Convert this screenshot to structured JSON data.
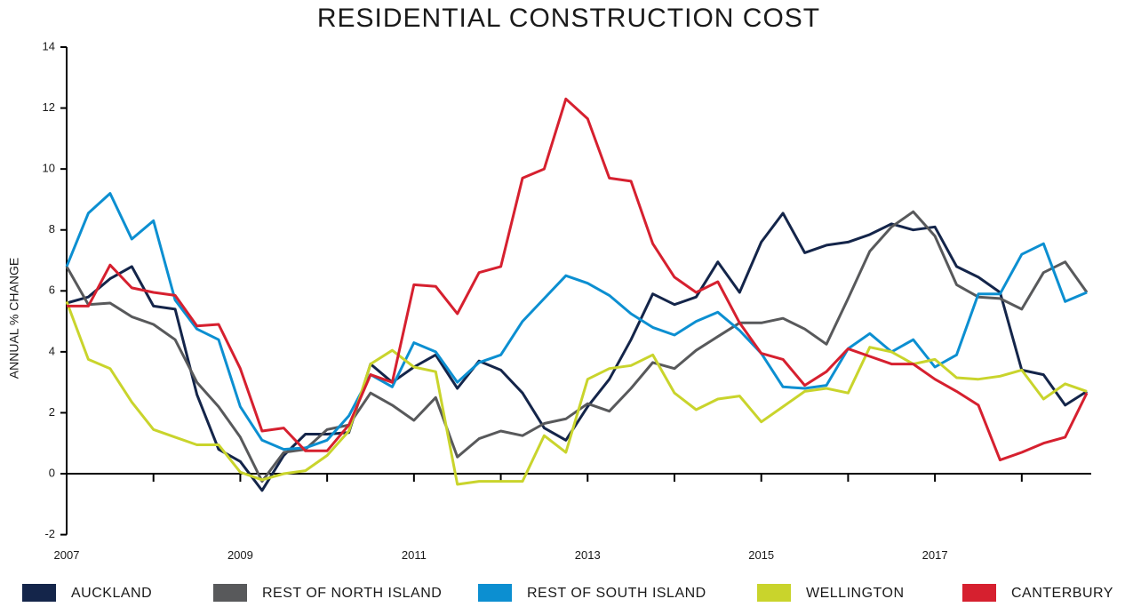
{
  "chart_data": {
    "type": "line",
    "title": "RESIDENTIAL CONSTRUCTION COST",
    "y_label": "ANNUAL % CHANGE",
    "x": [
      2007,
      2007.25,
      2007.5,
      2007.75,
      2008,
      2008.25,
      2008.5,
      2008.75,
      2009,
      2009.25,
      2009.5,
      2009.75,
      2010,
      2010.25,
      2010.5,
      2010.75,
      2011,
      2011.25,
      2011.5,
      2011.75,
      2012,
      2012.25,
      2012.5,
      2012.75,
      2013,
      2013.25,
      2013.5,
      2013.75,
      2014,
      2014.25,
      2014.5,
      2014.75,
      2015,
      2015.25,
      2015.5,
      2015.75,
      2016,
      2016.25,
      2016.5,
      2016.75,
      2017,
      2017.25,
      2017.5,
      2017.75,
      2018,
      2018.25,
      2018.5,
      2018.75
    ],
    "xlim": [
      2007,
      2018.8
    ],
    "xticks": [
      2007,
      2009,
      2011,
      2013,
      2015,
      2017
    ],
    "x_minor_ticks": [
      2008,
      2010,
      2012,
      2014,
      2016,
      2018
    ],
    "ylim": [
      -2,
      14
    ],
    "yticks": [
      -2,
      0,
      2,
      4,
      6,
      8,
      10,
      12,
      14
    ],
    "grid": false,
    "legend_position": "bottom",
    "series": [
      {
        "name": "AUCKLAND",
        "color": "#14254a",
        "values": [
          5.6,
          5.8,
          6.4,
          6.8,
          5.5,
          5.4,
          2.6,
          0.8,
          0.4,
          -0.55,
          0.6,
          1.3,
          1.3,
          1.35,
          3.6,
          3.0,
          3.5,
          3.9,
          2.8,
          3.7,
          3.4,
          2.65,
          1.5,
          1.1,
          2.2,
          3.1,
          4.4,
          5.9,
          5.55,
          5.8,
          6.95,
          5.95,
          7.6,
          8.55,
          7.25,
          7.5,
          7.6,
          7.85,
          8.2,
          8.0,
          8.1,
          6.8,
          6.45,
          5.95,
          3.4,
          3.25,
          2.25,
          2.7
        ]
      },
      {
        "name": "REST OF NORTH ISLAND",
        "color": "#58595b",
        "values": [
          6.8,
          5.55,
          5.6,
          5.15,
          4.9,
          4.4,
          3.0,
          2.2,
          1.2,
          -0.25,
          0.7,
          0.8,
          1.45,
          1.6,
          2.65,
          2.25,
          1.75,
          2.5,
          0.55,
          1.15,
          1.4,
          1.25,
          1.65,
          1.8,
          2.3,
          2.05,
          2.8,
          3.65,
          3.45,
          4.05,
          4.5,
          4.95,
          4.95,
          5.1,
          4.75,
          4.25,
          5.75,
          7.3,
          8.1,
          8.6,
          7.8,
          6.2,
          5.8,
          5.75,
          5.4,
          6.6,
          6.95,
          5.95
        ]
      },
      {
        "name": "REST OF SOUTH ISLAND",
        "color": "#0c8fd1",
        "values": [
          6.8,
          8.55,
          9.2,
          7.7,
          8.3,
          5.7,
          4.75,
          4.4,
          2.2,
          1.1,
          0.8,
          0.85,
          1.1,
          1.9,
          3.25,
          2.85,
          4.3,
          4.0,
          3.0,
          3.65,
          3.9,
          5.0,
          5.75,
          6.5,
          6.25,
          5.85,
          5.25,
          4.8,
          4.55,
          5.0,
          5.3,
          4.7,
          3.95,
          2.85,
          2.8,
          2.9,
          4.1,
          4.6,
          4.0,
          4.4,
          3.5,
          3.9,
          5.9,
          5.9,
          7.2,
          7.55,
          5.65,
          5.95
        ]
      },
      {
        "name": "WELLINGTON",
        "color": "#c9d42c",
        "values": [
          5.65,
          3.75,
          3.45,
          2.35,
          1.45,
          1.2,
          0.95,
          0.95,
          0.05,
          -0.2,
          0.0,
          0.1,
          0.6,
          1.4,
          3.6,
          4.05,
          3.5,
          3.35,
          -0.35,
          -0.25,
          -0.25,
          -0.25,
          1.25,
          0.7,
          3.1,
          3.45,
          3.55,
          3.9,
          2.65,
          2.1,
          2.45,
          2.55,
          1.7,
          2.2,
          2.7,
          2.8,
          2.65,
          4.15,
          4.0,
          3.6,
          3.75,
          3.15,
          3.1,
          3.2,
          3.4,
          2.45,
          2.95,
          2.7
        ]
      },
      {
        "name": "CANTERBURY",
        "color": "#d6202f",
        "values": [
          5.5,
          5.5,
          6.85,
          6.1,
          5.95,
          5.85,
          4.85,
          4.9,
          3.45,
          1.4,
          1.5,
          0.75,
          0.75,
          1.6,
          3.25,
          3.0,
          6.2,
          6.15,
          5.25,
          6.6,
          6.8,
          9.7,
          10.0,
          12.3,
          11.65,
          9.7,
          9.6,
          7.55,
          6.45,
          5.95,
          6.3,
          4.95,
          3.95,
          3.75,
          2.9,
          3.35,
          4.1,
          3.85,
          3.6,
          3.6,
          3.1,
          2.7,
          2.25,
          0.45,
          0.7,
          1.0,
          1.2,
          2.65
        ]
      }
    ]
  }
}
